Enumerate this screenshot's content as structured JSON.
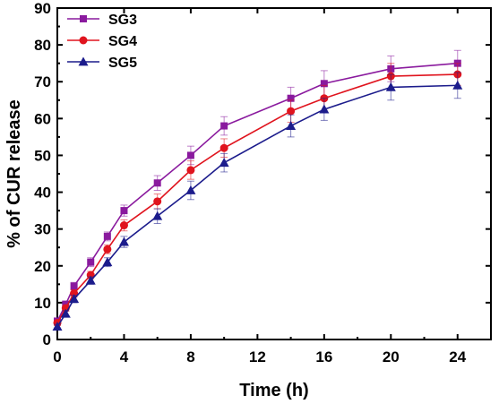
{
  "chart_data": {
    "type": "line",
    "xlabel": "Time (h)",
    "ylabel": "% of CUR release",
    "xlim": [
      0,
      26
    ],
    "ylim": [
      0,
      90
    ],
    "xticks": [
      0,
      4,
      8,
      12,
      16,
      20,
      24
    ],
    "yticks": [
      0,
      10,
      20,
      30,
      40,
      50,
      60,
      70,
      80,
      90
    ],
    "legend_position": "top-left",
    "grid": false,
    "series": [
      {
        "name": "SG3",
        "color": "#8a1a9e",
        "marker": "square",
        "x": [
          0,
          0.5,
          1,
          2,
          3,
          4,
          6,
          8,
          10,
          14,
          16,
          20,
          24
        ],
        "y": [
          5.0,
          9.5,
          14.5,
          21.0,
          28.0,
          35.0,
          42.5,
          50.0,
          58.0,
          65.5,
          69.5,
          73.5,
          75.0
        ],
        "error": [
          0.8,
          1.0,
          1.0,
          1.2,
          1.2,
          1.5,
          2.0,
          2.5,
          2.5,
          3.0,
          3.5,
          3.5,
          3.5
        ]
      },
      {
        "name": "SG4",
        "color": "#e0141e",
        "marker": "circle",
        "x": [
          0,
          0.5,
          1,
          2,
          3,
          4,
          6,
          8,
          10,
          14,
          16,
          20,
          24
        ],
        "y": [
          4.5,
          8.5,
          12.5,
          17.5,
          24.5,
          31.0,
          37.5,
          46.0,
          52.0,
          62.0,
          65.5,
          71.5,
          72.0
        ],
        "error": [
          0.7,
          0.8,
          1.0,
          1.0,
          1.2,
          1.5,
          2.0,
          2.5,
          2.5,
          3.0,
          3.5,
          3.5,
          3.0
        ]
      },
      {
        "name": "SG5",
        "color": "#1c1c8c",
        "marker": "triangle",
        "x": [
          0,
          0.5,
          1,
          2,
          3,
          4,
          6,
          8,
          10,
          14,
          16,
          20,
          24
        ],
        "y": [
          3.5,
          7.0,
          11.0,
          16.0,
          21.0,
          26.5,
          33.5,
          40.5,
          48.0,
          58.0,
          62.5,
          68.5,
          69.0
        ],
        "error": [
          0.6,
          0.8,
          1.0,
          1.0,
          1.2,
          1.5,
          2.0,
          2.5,
          2.5,
          3.0,
          3.0,
          3.5,
          3.5
        ]
      }
    ]
  }
}
